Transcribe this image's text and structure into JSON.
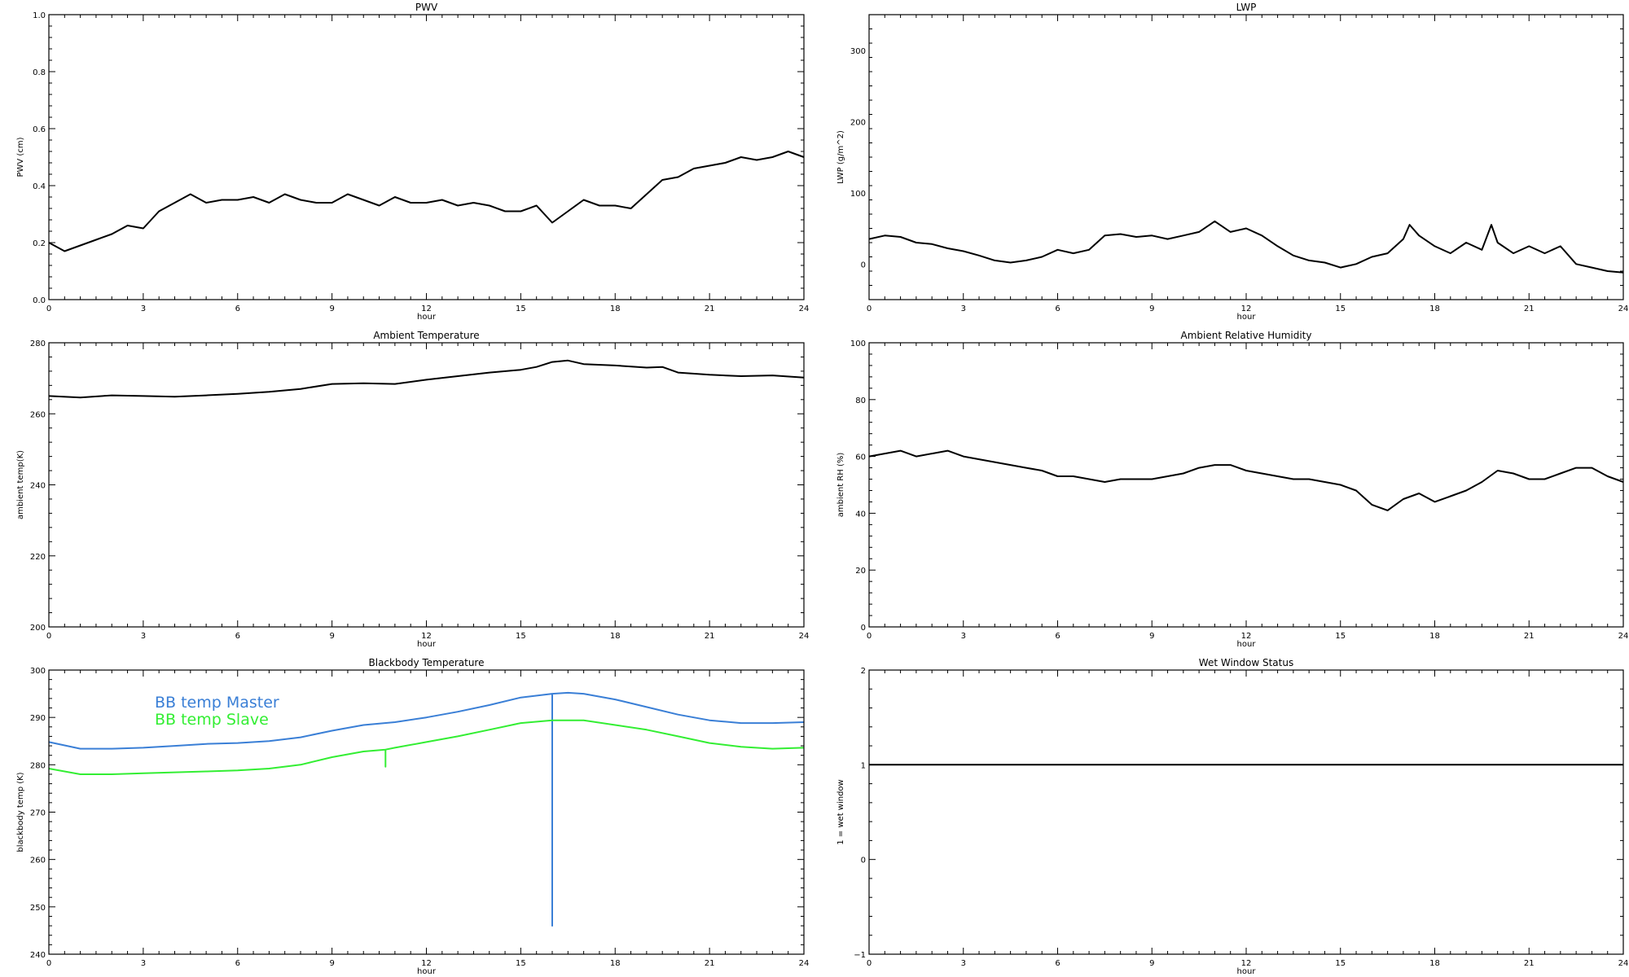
{
  "chart_data": [
    {
      "id": "pwv",
      "type": "line",
      "title": "PWV",
      "xlabel": "hour",
      "ylabel": "PWV (cm)",
      "xlim": [
        0,
        24
      ],
      "ylim": [
        0.0,
        1.0
      ],
      "xticks": [
        0,
        3,
        6,
        9,
        12,
        15,
        18,
        21,
        24
      ],
      "xticklabels": [
        "0",
        "3",
        "6",
        "9",
        "12",
        "15",
        "18",
        "21",
        "24"
      ],
      "yticks": [
        0.0,
        0.2,
        0.4,
        0.6,
        0.8,
        1.0
      ],
      "yticklabels": [
        "0.0",
        "0.2",
        "0.4",
        "0.6",
        "0.8",
        "1.0"
      ],
      "series": [
        {
          "color": "#000000",
          "x": [
            0,
            0.5,
            1,
            1.5,
            2,
            2.5,
            3,
            3.5,
            4,
            4.5,
            5,
            5.5,
            6,
            6.5,
            7,
            7.5,
            8,
            8.5,
            9,
            9.5,
            10,
            10.5,
            11,
            11.5,
            12,
            12.5,
            13,
            13.5,
            14,
            14.5,
            15,
            15.5,
            16,
            16.5,
            17,
            17.5,
            18,
            18.5,
            19,
            19.5,
            20,
            20.5,
            21,
            21.5,
            22,
            22.5,
            23,
            23.5,
            24
          ],
          "y": [
            0.2,
            0.17,
            0.19,
            0.21,
            0.23,
            0.26,
            0.25,
            0.31,
            0.34,
            0.37,
            0.34,
            0.35,
            0.35,
            0.36,
            0.34,
            0.37,
            0.35,
            0.34,
            0.34,
            0.37,
            0.35,
            0.33,
            0.36,
            0.34,
            0.34,
            0.35,
            0.33,
            0.34,
            0.33,
            0.31,
            0.31,
            0.33,
            0.27,
            0.31,
            0.35,
            0.33,
            0.33,
            0.32,
            0.37,
            0.42,
            0.43,
            0.46,
            0.47,
            0.48,
            0.5,
            0.49,
            0.5,
            0.52,
            0.5
          ]
        }
      ]
    },
    {
      "id": "lwp",
      "type": "line",
      "title": "LWP",
      "xlabel": "hour",
      "ylabel": "LWP (g/m^2)",
      "xlim": [
        0,
        24
      ],
      "ylim": [
        -50,
        350
      ],
      "xticks": [
        0,
        3,
        6,
        9,
        12,
        15,
        18,
        21,
        24
      ],
      "xticklabels": [
        "0",
        "3",
        "6",
        "9",
        "12",
        "15",
        "18",
        "21",
        "24"
      ],
      "yticks": [
        0,
        100,
        200,
        300
      ],
      "yticklabels": [
        "0",
        "100",
        "200",
        "300"
      ],
      "series": [
        {
          "color": "#000000",
          "x": [
            0,
            0.5,
            1,
            1.5,
            2,
            2.5,
            3,
            3.5,
            4,
            4.5,
            5,
            5.5,
            6,
            6.5,
            7,
            7.5,
            8,
            8.5,
            9,
            9.5,
            10,
            10.5,
            11,
            11.5,
            12,
            12.5,
            13,
            13.5,
            14,
            14.5,
            15,
            15.5,
            16,
            16.5,
            17,
            17.2,
            17.5,
            18,
            18.5,
            19,
            19.5,
            19.8,
            20,
            20.5,
            21,
            21.5,
            22,
            22.5,
            23,
            23.5,
            24
          ],
          "y": [
            35,
            40,
            38,
            30,
            28,
            22,
            18,
            12,
            5,
            2,
            5,
            10,
            20,
            15,
            20,
            40,
            42,
            38,
            40,
            35,
            40,
            45,
            60,
            45,
            50,
            40,
            25,
            12,
            5,
            2,
            -5,
            0,
            10,
            15,
            35,
            55,
            40,
            25,
            15,
            30,
            20,
            55,
            30,
            15,
            25,
            15,
            25,
            0,
            -5,
            -10,
            -12
          ]
        }
      ]
    },
    {
      "id": "ambient-temp",
      "type": "line",
      "title": "Ambient Temperature",
      "xlabel": "hour",
      "ylabel": "ambient temp(K)",
      "xlim": [
        0,
        24
      ],
      "ylim": [
        200,
        280
      ],
      "xticks": [
        0,
        3,
        6,
        9,
        12,
        15,
        18,
        21,
        24
      ],
      "xticklabels": [
        "0",
        "3",
        "6",
        "9",
        "12",
        "15",
        "18",
        "21",
        "24"
      ],
      "yticks": [
        200,
        220,
        240,
        260,
        280
      ],
      "yticklabels": [
        "200",
        "220",
        "240",
        "260",
        "280"
      ],
      "series": [
        {
          "color": "#000000",
          "x": [
            0,
            1,
            2,
            3,
            4,
            5,
            6,
            7,
            8,
            9,
            10,
            11,
            12,
            13,
            14,
            15,
            15.5,
            16,
            16.5,
            17,
            18,
            19,
            19.5,
            20,
            21,
            22,
            23,
            24
          ],
          "y": [
            265,
            264.6,
            265.2,
            265,
            264.8,
            265.2,
            265.6,
            266.2,
            267,
            268.4,
            268.6,
            268.4,
            269.6,
            270.6,
            271.6,
            272.4,
            273.2,
            274.6,
            275,
            274,
            273.6,
            273,
            273.2,
            271.6,
            271,
            270.6,
            270.8,
            270.2
          ]
        }
      ]
    },
    {
      "id": "ambient-rh",
      "type": "line",
      "title": "Ambient Relative Humidity",
      "xlabel": "hour",
      "ylabel": "ambient RH (%)",
      "xlim": [
        0,
        24
      ],
      "ylim": [
        0,
        100
      ],
      "xticks": [
        0,
        3,
        6,
        9,
        12,
        15,
        18,
        21,
        24
      ],
      "xticklabels": [
        "0",
        "3",
        "6",
        "9",
        "12",
        "15",
        "18",
        "21",
        "24"
      ],
      "yticks": [
        0,
        20,
        40,
        60,
        80,
        100
      ],
      "yticklabels": [
        "0",
        "20",
        "40",
        "60",
        "80",
        "100"
      ],
      "series": [
        {
          "color": "#000000",
          "x": [
            0,
            0.5,
            1,
            1.5,
            2,
            2.5,
            3,
            3.5,
            4,
            4.5,
            5,
            5.5,
            6,
            6.5,
            7,
            7.5,
            8,
            8.5,
            9,
            9.5,
            10,
            10.5,
            11,
            11.5,
            12,
            12.5,
            13,
            13.5,
            14,
            14.5,
            15,
            15.5,
            16,
            16.5,
            17,
            17.5,
            18,
            18.5,
            19,
            19.5,
            20,
            20.5,
            21,
            21.5,
            22,
            22.5,
            23,
            23.5,
            24
          ],
          "y": [
            60,
            61,
            62,
            60,
            61,
            62,
            60,
            59,
            58,
            57,
            56,
            55,
            53,
            53,
            52,
            51,
            52,
            52,
            52,
            53,
            54,
            56,
            57,
            57,
            55,
            54,
            53,
            52,
            52,
            51,
            50,
            48,
            43,
            41,
            45,
            47,
            44,
            46,
            48,
            51,
            55,
            54,
            52,
            52,
            54,
            56,
            56,
            53,
            51
          ]
        }
      ]
    },
    {
      "id": "blackbody-temp",
      "type": "line",
      "title": "Blackbody Temperature",
      "xlabel": "hour",
      "ylabel": "blackbody temp (K)",
      "xlim": [
        0,
        24
      ],
      "ylim": [
        240,
        300
      ],
      "xticks": [
        0,
        3,
        6,
        9,
        12,
        15,
        18,
        21,
        24
      ],
      "xticklabels": [
        "0",
        "3",
        "6",
        "9",
        "12",
        "15",
        "18",
        "21",
        "24"
      ],
      "yticks": [
        240,
        250,
        260,
        270,
        280,
        290,
        300
      ],
      "yticklabels": [
        "240",
        "250",
        "260",
        "270",
        "280",
        "290",
        "300"
      ],
      "series": [
        {
          "name": "BB temp Master",
          "color": "#3a7fd6",
          "x": [
            0,
            1,
            2,
            3,
            4,
            5,
            6,
            7,
            8,
            9,
            10,
            11,
            12,
            13,
            14,
            15,
            16,
            16,
            16,
            16.5,
            17,
            18,
            19,
            20,
            21,
            22,
            23,
            24
          ],
          "y": [
            284.8,
            283.4,
            283.4,
            283.6,
            284,
            284.4,
            284.6,
            285,
            285.8,
            287.2,
            288.4,
            289,
            290,
            291.2,
            292.6,
            294.2,
            295,
            246,
            295,
            295.2,
            295,
            293.8,
            292.2,
            290.6,
            289.4,
            288.8,
            288.8,
            289
          ]
        },
        {
          "name": "BB temp Slave",
          "color": "#33ee33",
          "x": [
            0,
            1,
            2,
            3,
            4,
            5,
            6,
            7,
            8,
            9,
            10,
            10.7,
            10.7,
            10.7,
            11,
            12,
            13,
            14,
            15,
            16,
            17,
            18,
            19,
            20,
            21,
            22,
            23,
            24
          ],
          "y": [
            279.2,
            278,
            278,
            278.2,
            278.4,
            278.6,
            278.8,
            279.2,
            280,
            281.6,
            282.8,
            283.2,
            279.6,
            283.2,
            283.6,
            284.8,
            286,
            287.4,
            288.8,
            289.4,
            289.4,
            288.4,
            287.4,
            286,
            284.6,
            283.8,
            283.4,
            283.6
          ]
        }
      ]
    },
    {
      "id": "wet-window",
      "type": "line",
      "title": "Wet Window Status",
      "xlabel": "hour",
      "ylabel": "1 = wet window",
      "xlim": [
        0,
        24
      ],
      "ylim": [
        -1,
        2
      ],
      "xticks": [
        0,
        3,
        6,
        9,
        12,
        15,
        18,
        21,
        24
      ],
      "xticklabels": [
        "0",
        "3",
        "6",
        "9",
        "12",
        "15",
        "18",
        "21",
        "24"
      ],
      "yticks": [
        -1,
        0,
        1,
        2
      ],
      "yticklabels": [
        "−1",
        "0",
        "1",
        "2"
      ],
      "series": [
        {
          "color": "#000000",
          "x": [
            0,
            24
          ],
          "y": [
            1,
            1
          ]
        }
      ]
    }
  ]
}
